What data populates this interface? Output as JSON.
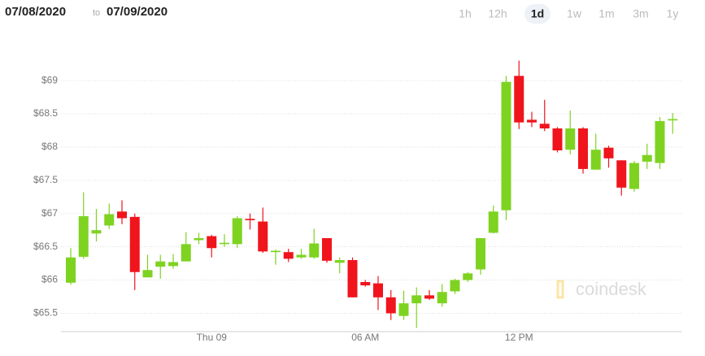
{
  "header": {
    "from": "07/08/2020",
    "to_word": "to",
    "to": "07/09/2020",
    "ranges": [
      "1h",
      "12h",
      "1d",
      "1w",
      "1m",
      "3m",
      "1y"
    ],
    "selected": 2
  },
  "watermark": "coindesk",
  "chart_data": {
    "type": "candlestick",
    "x": [
      null,
      null,
      null,
      null,
      null,
      null,
      null,
      null,
      null,
      null,
      null,
      "Thu 09",
      null,
      null,
      null,
      null,
      null,
      null,
      null,
      null,
      null,
      null,
      null,
      "06 AM",
      null,
      null,
      null,
      null,
      null,
      null,
      null,
      null,
      null,
      null,
      null,
      "12 PM",
      null,
      null,
      null,
      null,
      null,
      null,
      null,
      null,
      null,
      null,
      null,
      null
    ],
    "open": [
      65.96,
      66.35,
      66.7,
      66.82,
      67.03,
      66.95,
      66.04,
      66.2,
      66.21,
      66.28,
      66.6,
      66.66,
      66.54,
      66.54,
      66.92,
      66.88,
      66.42,
      66.42,
      66.34,
      66.34,
      66.63,
      66.26,
      66.3,
      65.97,
      65.95,
      65.74,
      65.46,
      65.65,
      65.77,
      65.65,
      65.83,
      66.0,
      66.16,
      66.71,
      67.05,
      69.07,
      68.41,
      68.35,
      68.28,
      67.96,
      68.28,
      67.66,
      67.99,
      67.8,
      67.37,
      67.78,
      67.76,
      68.4
    ],
    "high": [
      66.48,
      67.32,
      67.07,
      67.15,
      67.2,
      67.0,
      66.38,
      66.38,
      66.39,
      66.72,
      66.71,
      66.68,
      66.69,
      66.96,
      67.0,
      67.09,
      66.46,
      66.47,
      66.47,
      66.77,
      66.63,
      66.34,
      66.34,
      66.0,
      66.06,
      65.85,
      65.84,
      65.89,
      65.85,
      65.94,
      66.02,
      66.12,
      66.63,
      67.12,
      69.07,
      69.3,
      68.53,
      68.71,
      68.3,
      68.55,
      68.3,
      68.2,
      68.02,
      67.8,
      67.79,
      68.05,
      68.45,
      68.51
    ],
    "low": [
      65.93,
      66.32,
      66.58,
      66.77,
      66.84,
      65.85,
      66.04,
      66.02,
      66.17,
      66.28,
      66.54,
      66.34,
      66.5,
      66.48,
      66.76,
      66.41,
      66.23,
      66.27,
      66.32,
      66.32,
      66.26,
      66.1,
      65.74,
      65.9,
      65.55,
      65.4,
      65.4,
      65.28,
      65.7,
      65.6,
      65.79,
      65.97,
      66.08,
      66.7,
      66.9,
      68.27,
      68.3,
      68.24,
      67.92,
      67.89,
      67.6,
      67.66,
      67.69,
      67.27,
      67.33,
      67.67,
      67.67,
      68.2
    ],
    "close": [
      66.34,
      66.96,
      66.75,
      66.99,
      66.93,
      66.12,
      66.15,
      66.28,
      66.27,
      66.54,
      66.63,
      66.48,
      66.56,
      66.93,
      66.9,
      66.43,
      66.44,
      66.32,
      66.38,
      66.55,
      66.29,
      66.3,
      65.74,
      65.92,
      65.74,
      65.5,
      65.65,
      65.77,
      65.72,
      65.82,
      66.0,
      66.1,
      66.63,
      67.03,
      68.98,
      68.37,
      68.37,
      68.28,
      67.95,
      68.28,
      67.67,
      67.96,
      67.83,
      67.39,
      67.76,
      67.88,
      68.39,
      68.42
    ],
    "up_color": "#7ed321",
    "down_color": "#f0141c",
    "ylim": [
      65.2,
      69.6
    ],
    "yticks": [
      {
        "value": 65.5,
        "label": "$65.5"
      },
      {
        "value": 66,
        "label": "$66"
      },
      {
        "value": 66.5,
        "label": "$66.5"
      },
      {
        "value": 67,
        "label": "$67"
      },
      {
        "value": 67.5,
        "label": "$67.5"
      },
      {
        "value": 68,
        "label": "$68"
      },
      {
        "value": 68.5,
        "label": "$68.5"
      },
      {
        "value": 69,
        "label": "$69"
      }
    ],
    "grid": true
  }
}
